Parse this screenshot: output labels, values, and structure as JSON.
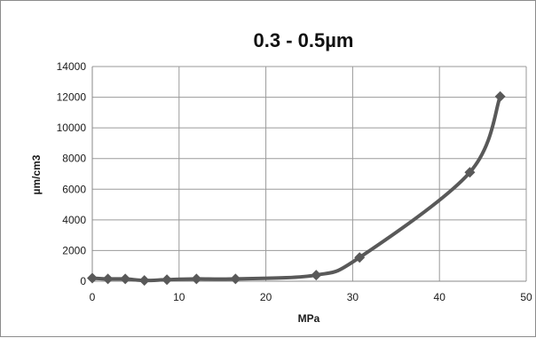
{
  "chart_data": {
    "type": "line",
    "title": "0.3 - 0.5µm",
    "xlabel": "MPa",
    "ylabel": "µm/cm3",
    "xlim": [
      0,
      50
    ],
    "ylim": [
      0,
      14000
    ],
    "x_ticks": [
      "0",
      "10",
      "20",
      "30",
      "40",
      "50"
    ],
    "y_ticks": [
      "0",
      "2000",
      "4000",
      "6000",
      "8000",
      "10000",
      "12000",
      "14000"
    ],
    "grid": true,
    "legend": "none",
    "series": [
      {
        "color": "#595959",
        "marker": "diamond",
        "smooth": true,
        "x": [
          0,
          1.8,
          3.8,
          6,
          8.6,
          12,
          16.5,
          25.8,
          30.8,
          43.5,
          47
        ],
        "y": [
          200,
          150,
          150,
          50,
          100,
          150,
          150,
          400,
          1550,
          7100,
          12050
        ]
      }
    ]
  }
}
